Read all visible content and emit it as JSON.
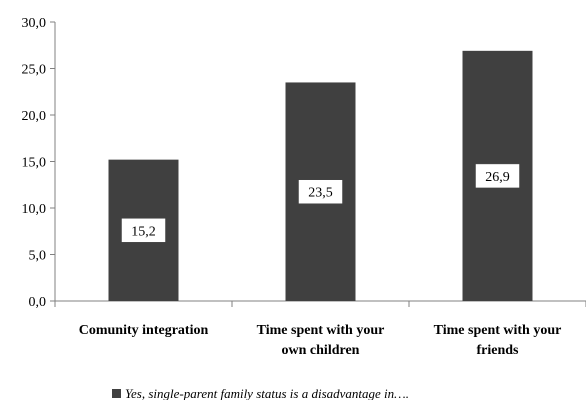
{
  "chart_data": {
    "type": "bar",
    "categories": [
      [
        "Comunity integration"
      ],
      [
        "Time spent with your",
        "own children"
      ],
      [
        "Time spent with your",
        "friends"
      ]
    ],
    "series": [
      {
        "name": "Yes, single-parent family status is a disadvantage in….",
        "values": [
          15.2,
          23.5,
          26.9
        ],
        "value_labels": [
          "15,2",
          "23,5",
          "26,9"
        ],
        "color": "#404040"
      }
    ],
    "y_ticks": [
      "0,0",
      "5,0",
      "10,0",
      "15,0",
      "20,0",
      "25,0",
      "30,0"
    ],
    "ylim": [
      0,
      30
    ],
    "y_tick_step": 5,
    "grid": false,
    "legend_position": "bottom",
    "title": "",
    "xlabel": "",
    "ylabel": ""
  }
}
